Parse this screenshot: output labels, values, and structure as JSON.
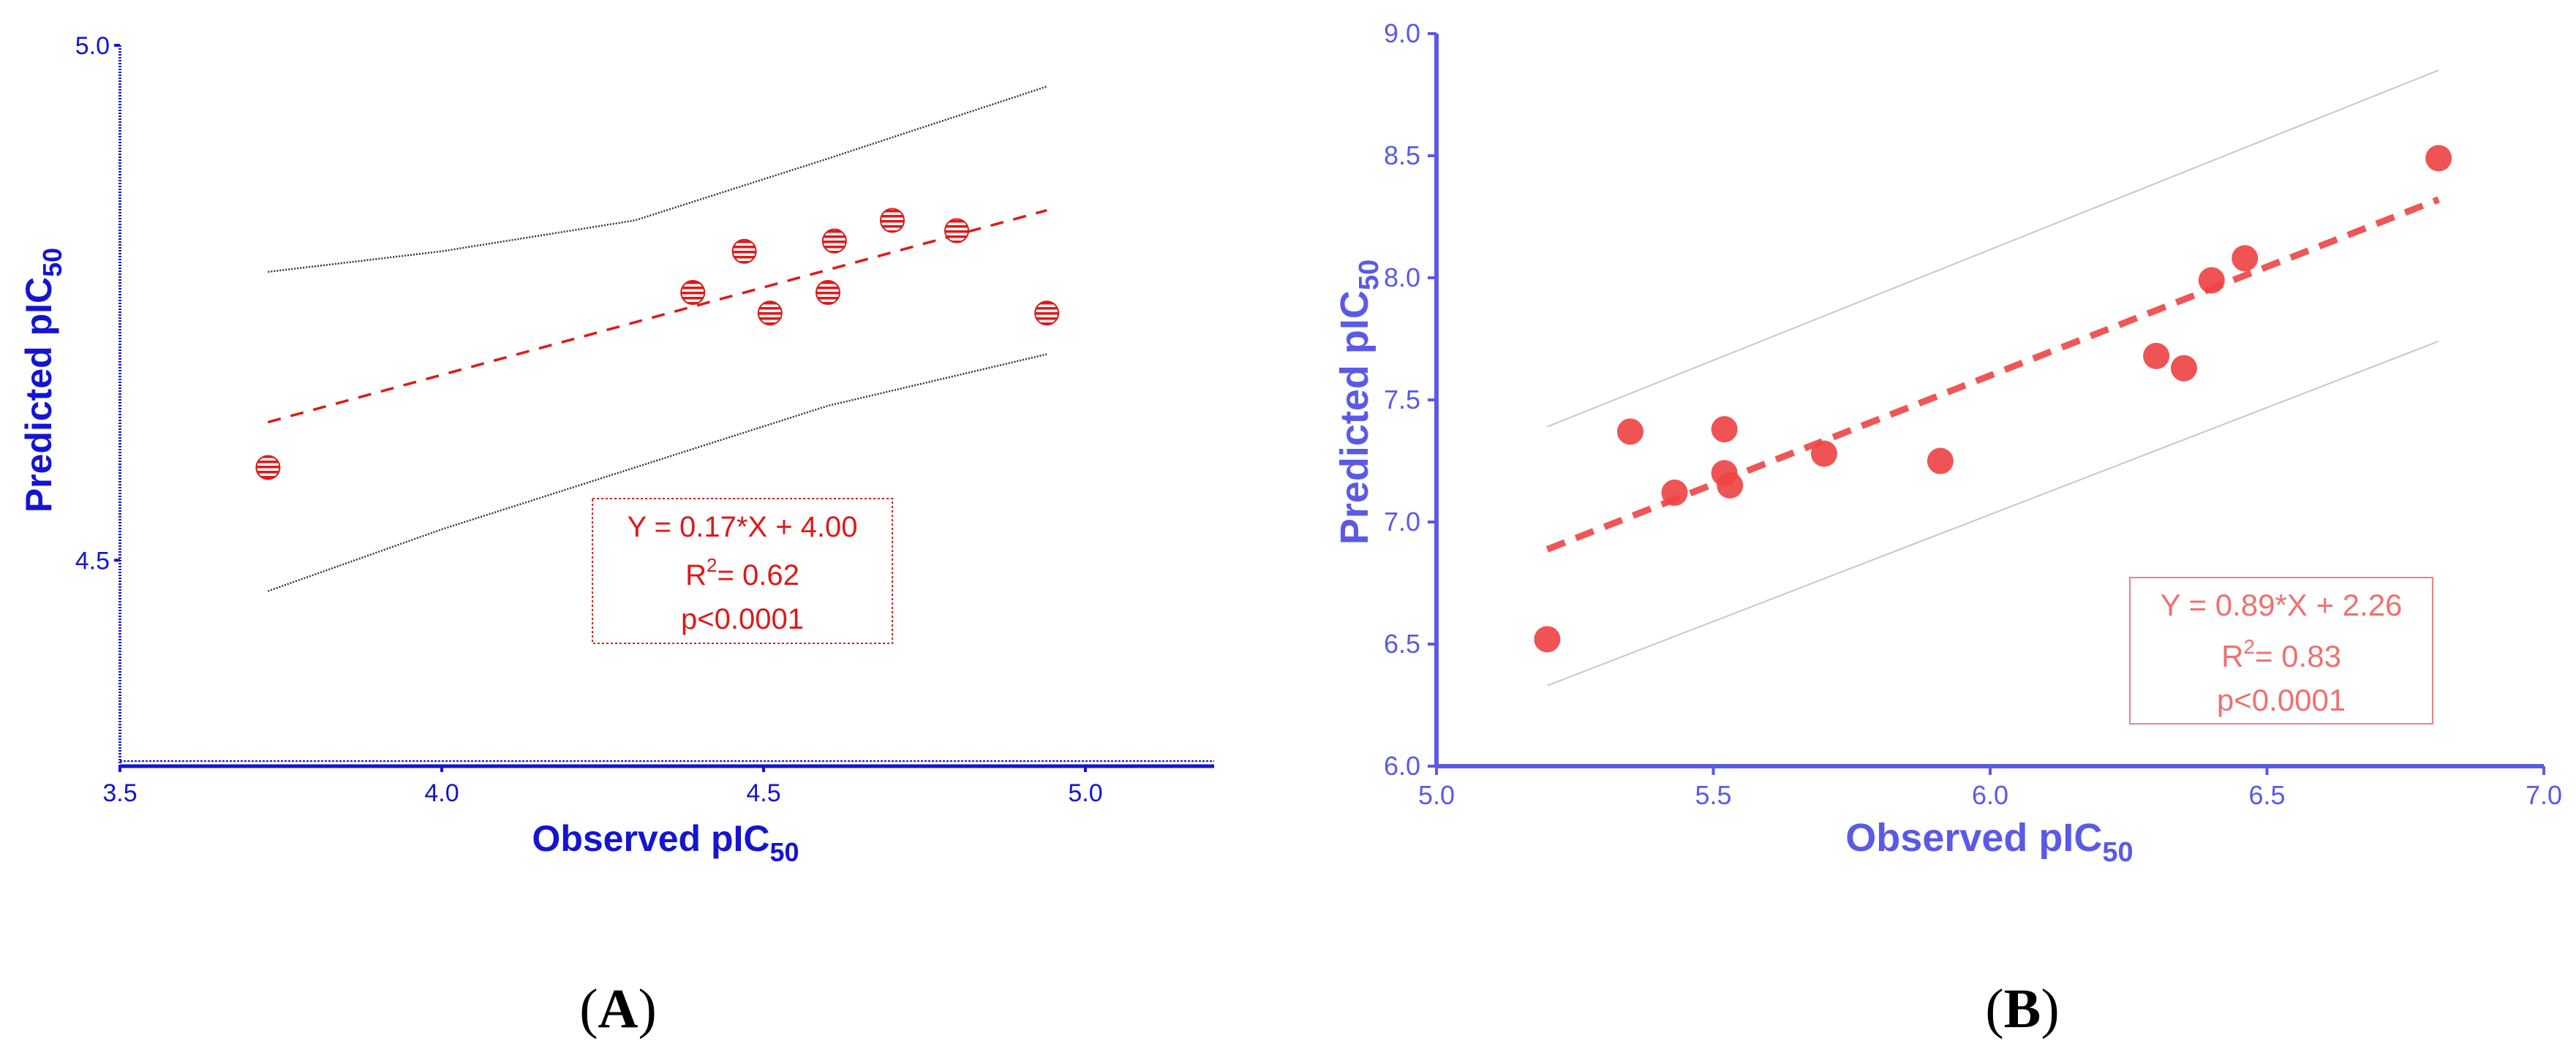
{
  "chart_data": [
    {
      "panel_label": "A",
      "type": "scatter",
      "xlabel": "Observed pIC",
      "xlabel_sub": "50",
      "ylabel": "Predicted pIC",
      "ylabel_sub": "50",
      "xlim": [
        3.5,
        5.2
      ],
      "ylim": [
        4.3,
        5.0
      ],
      "xticks": [
        3.5,
        4.0,
        4.5,
        5.0
      ],
      "xtick_labels": [
        "3.5",
        "4.0",
        "4.5",
        "5.0"
      ],
      "yticks": [
        4.5,
        5.0
      ],
      "ytick_labels": [
        "4.5",
        "5.0"
      ],
      "axis_color": "#1414d2",
      "marker_color": "#e01818",
      "points": [
        {
          "x": 3.73,
          "y": 4.59
        },
        {
          "x": 4.39,
          "y": 4.76
        },
        {
          "x": 4.47,
          "y": 4.8
        },
        {
          "x": 4.51,
          "y": 4.74
        },
        {
          "x": 4.6,
          "y": 4.76
        },
        {
          "x": 4.61,
          "y": 4.81
        },
        {
          "x": 4.7,
          "y": 4.83
        },
        {
          "x": 4.8,
          "y": 4.82
        },
        {
          "x": 4.94,
          "y": 4.74
        }
      ],
      "fit_line": {
        "slope": 0.17,
        "intercept": 4.0,
        "x_range": [
          3.73,
          4.94
        ]
      },
      "confidence_band": {
        "upper": [
          [
            3.73,
            4.78
          ],
          [
            4.0,
            4.8
          ],
          [
            4.3,
            4.83
          ],
          [
            4.6,
            4.89
          ],
          [
            4.94,
            4.96
          ]
        ],
        "lower": [
          [
            3.73,
            4.47
          ],
          [
            4.0,
            4.53
          ],
          [
            4.3,
            4.59
          ],
          [
            4.6,
            4.65
          ],
          [
            4.94,
            4.7
          ]
        ]
      },
      "annotation": {
        "equation": "Y = 0.17*X + 4.00",
        "r2_label": "R",
        "r2_sup": "2",
        "r2_value": "= 0.62",
        "p_value": "p<0.0001"
      }
    },
    {
      "panel_label": "B",
      "type": "scatter",
      "xlabel": "Observed pIC",
      "xlabel_sub": "50",
      "ylabel": "Predicted pIC",
      "ylabel_sub": "50",
      "xlim": [
        5.0,
        7.0
      ],
      "ylim": [
        6.0,
        9.0
      ],
      "xticks": [
        5.0,
        5.5,
        6.0,
        6.5,
        7.0
      ],
      "xtick_labels": [
        "5.0",
        "5.5",
        "6.0",
        "6.5",
        "7.0"
      ],
      "yticks": [
        6.0,
        6.5,
        7.0,
        7.5,
        8.0,
        8.5,
        9.0
      ],
      "ytick_labels": [
        "6.0",
        "6.5",
        "7.0",
        "7.5",
        "8.0",
        "8.5",
        "9.0"
      ],
      "axis_color": "#5a5ae6",
      "marker_color": "#ee4444",
      "points": [
        {
          "x": 5.2,
          "y": 6.52
        },
        {
          "x": 5.35,
          "y": 7.37
        },
        {
          "x": 5.43,
          "y": 7.12
        },
        {
          "x": 5.52,
          "y": 7.2
        },
        {
          "x": 5.52,
          "y": 7.38
        },
        {
          "x": 5.53,
          "y": 7.15
        },
        {
          "x": 5.7,
          "y": 7.28
        },
        {
          "x": 5.91,
          "y": 7.25
        },
        {
          "x": 6.3,
          "y": 7.68
        },
        {
          "x": 6.35,
          "y": 7.63
        },
        {
          "x": 6.4,
          "y": 7.99
        },
        {
          "x": 6.46,
          "y": 8.08
        },
        {
          "x": 6.81,
          "y": 8.49
        }
      ],
      "fit_line": {
        "slope": 0.89,
        "intercept": 2.26,
        "x_range": [
          5.2,
          6.81
        ]
      },
      "confidence_band": {
        "upper": [
          [
            5.2,
            7.39
          ],
          [
            6.81,
            8.85
          ]
        ],
        "lower": [
          [
            5.2,
            6.33
          ],
          [
            6.81,
            7.74
          ]
        ]
      },
      "annotation": {
        "equation": "Y = 0.89*X + 2.26",
        "r2_label": "R",
        "r2_sup": "2",
        "r2_value": "= 0.83",
        "p_value": "p<0.0001"
      }
    }
  ]
}
